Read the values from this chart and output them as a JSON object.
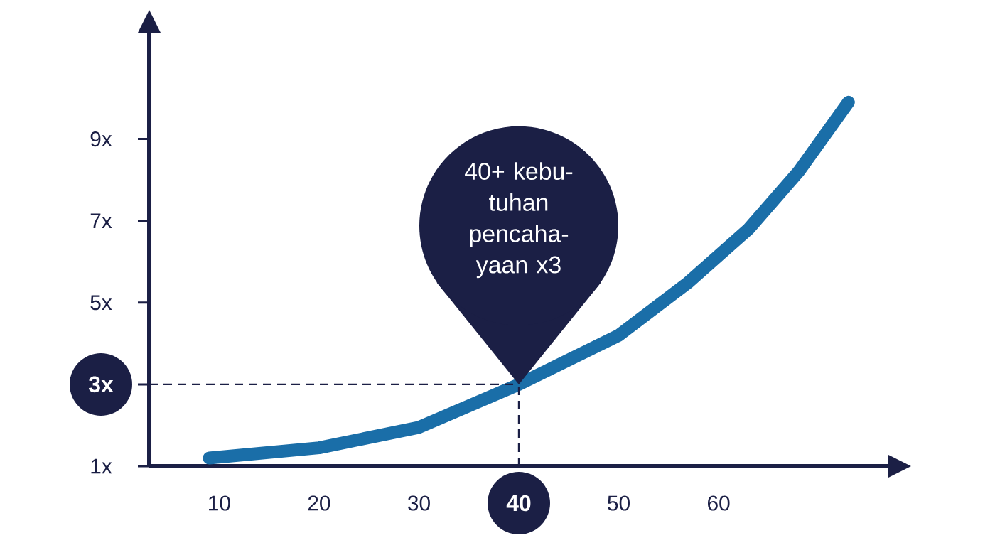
{
  "chart_data": {
    "type": "line",
    "x": [
      9,
      20,
      30,
      40,
      50,
      57,
      63,
      68,
      73
    ],
    "values": [
      1.2,
      1.45,
      1.95,
      3,
      4.2,
      5.5,
      6.8,
      8.2,
      9.9
    ],
    "color": "#1a6ea8",
    "xlim": [
      3,
      77
    ],
    "ylim": [
      1,
      11.6
    ],
    "xticks": [
      10,
      20,
      30,
      40,
      50,
      60
    ],
    "yticks": [
      {
        "value": 1,
        "label": "1x"
      },
      {
        "value": 3,
        "label": "3x"
      },
      {
        "value": 5,
        "label": "5x"
      },
      {
        "value": 7,
        "label": "7x"
      },
      {
        "value": 9,
        "label": "9x"
      }
    ],
    "ref_lines": [
      {
        "axis": "x",
        "value": 40,
        "color": "#1b1f45",
        "line_style": "dashed"
      },
      {
        "axis": "y",
        "value": 3,
        "color": "#1b1f45",
        "line_style": "dashed"
      }
    ],
    "annotations": [
      "40+ kebu-tuhan pencaha-yaan x3"
    ],
    "grid": false
  }
}
